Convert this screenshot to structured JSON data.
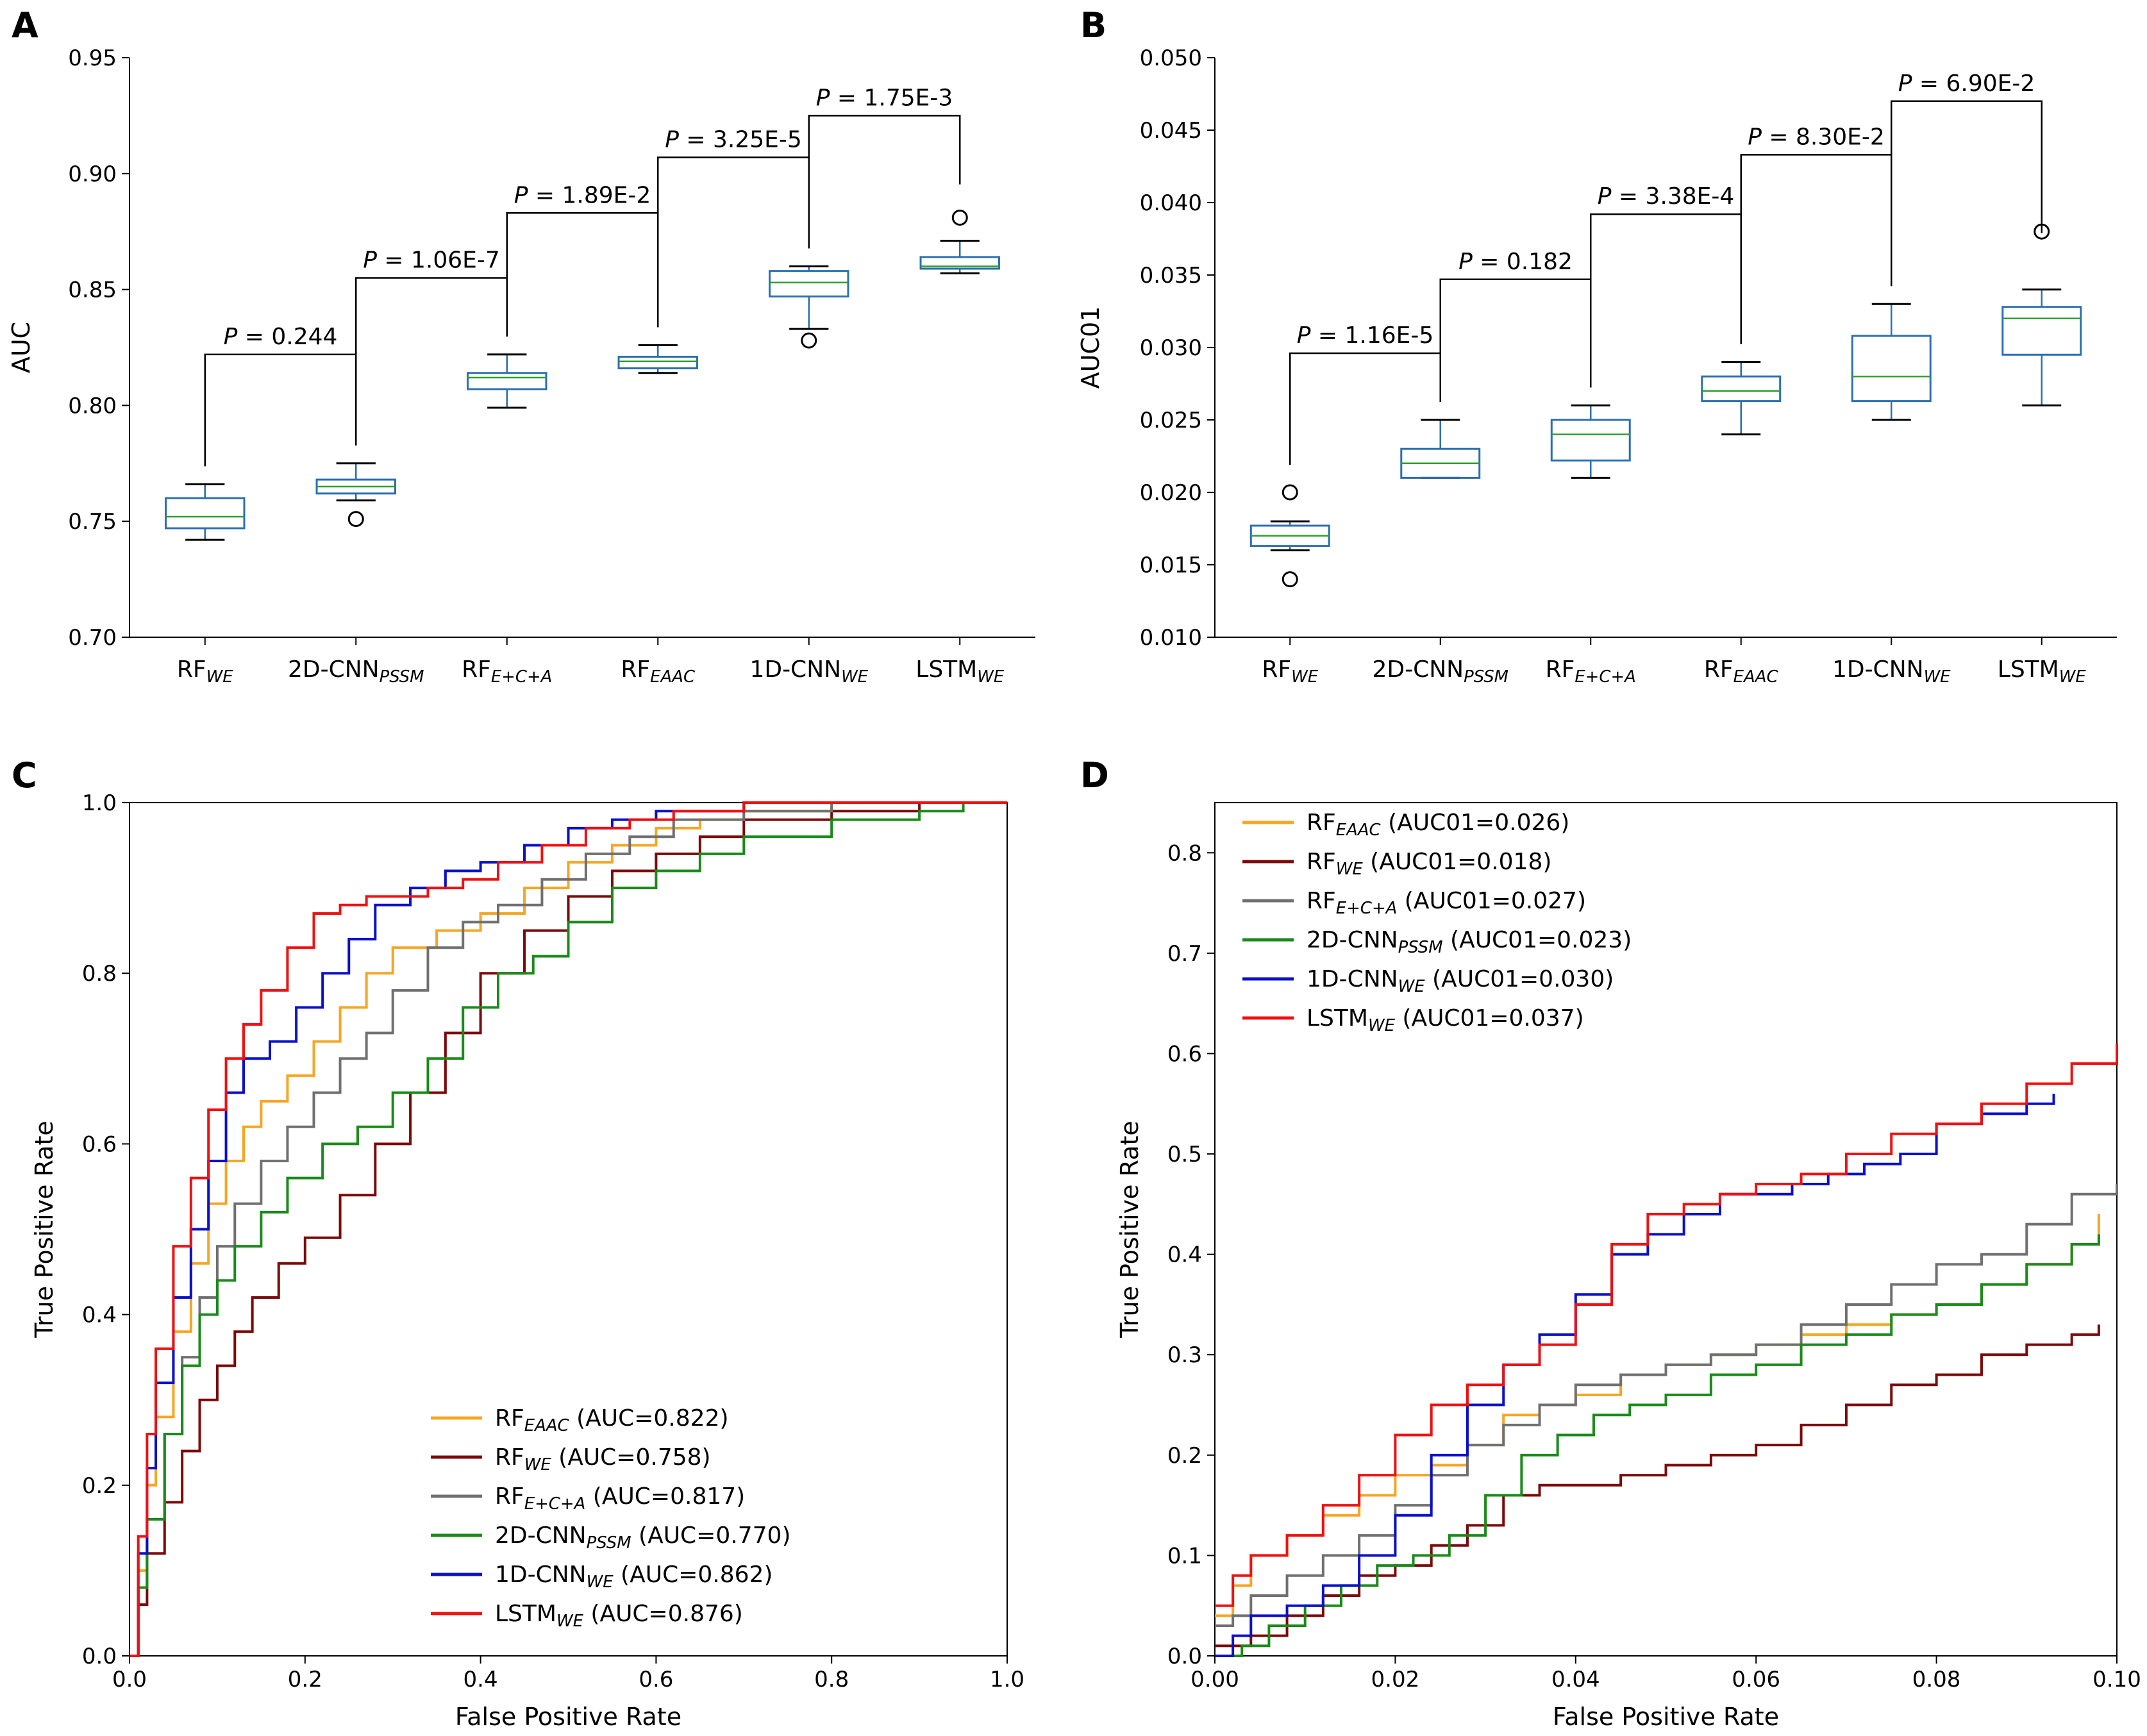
{
  "figure": {
    "panels": [
      "A",
      "B",
      "C",
      "D"
    ]
  },
  "chart_data": [
    {
      "panel": "A",
      "type": "box",
      "ylabel": "AUC",
      "xlabel": "",
      "ylim": [
        0.7,
        0.95
      ],
      "yticks": [
        "0.70",
        "0.75",
        "0.80",
        "0.85",
        "0.90",
        "0.95"
      ],
      "categories": [
        {
          "name": "RF",
          "sub": "WE"
        },
        {
          "name": "2D-CNN",
          "sub": "PSSM"
        },
        {
          "name": "RF",
          "sub": "E+C+A"
        },
        {
          "name": "RF",
          "sub": "EAAC"
        },
        {
          "name": "1D-CNN",
          "sub": "WE"
        },
        {
          "name": "LSTM",
          "sub": "WE"
        }
      ],
      "boxes": [
        {
          "min": 0.742,
          "q1": 0.747,
          "median": 0.752,
          "q3": 0.76,
          "max": 0.766,
          "outliers": []
        },
        {
          "min": 0.759,
          "q1": 0.762,
          "median": 0.765,
          "q3": 0.768,
          "max": 0.775,
          "outliers": [
            0.751
          ]
        },
        {
          "min": 0.799,
          "q1": 0.807,
          "median": 0.812,
          "q3": 0.814,
          "max": 0.822,
          "outliers": []
        },
        {
          "min": 0.814,
          "q1": 0.816,
          "median": 0.819,
          "q3": 0.821,
          "max": 0.826,
          "outliers": []
        },
        {
          "min": 0.833,
          "q1": 0.847,
          "median": 0.853,
          "q3": 0.858,
          "max": 0.86,
          "outliers": [
            0.828
          ]
        },
        {
          "min": 0.857,
          "q1": 0.859,
          "median": 0.86,
          "q3": 0.864,
          "max": 0.871,
          "outliers": [
            0.881
          ]
        }
      ],
      "comparisons": [
        {
          "from": 0,
          "to": 1,
          "label": "P = 0.244",
          "y": 0.822
        },
        {
          "from": 1,
          "to": 2,
          "label": "P = 1.06E-7",
          "y": 0.855
        },
        {
          "from": 2,
          "to": 3,
          "label": "P = 1.89E-2",
          "y": 0.883
        },
        {
          "from": 3,
          "to": 4,
          "label": "P = 3.25E-5",
          "y": 0.907
        },
        {
          "from": 4,
          "to": 5,
          "label": "P = 1.75E-3",
          "y": 0.925
        }
      ]
    },
    {
      "panel": "B",
      "type": "box",
      "ylabel": "AUC01",
      "xlabel": "",
      "ylim": [
        0.01,
        0.05
      ],
      "yticks": [
        "0.010",
        "0.015",
        "0.020",
        "0.025",
        "0.030",
        "0.035",
        "0.040",
        "0.045",
        "0.050"
      ],
      "categories": [
        {
          "name": "RF",
          "sub": "WE"
        },
        {
          "name": "2D-CNN",
          "sub": "PSSM"
        },
        {
          "name": "RF",
          "sub": "E+C+A"
        },
        {
          "name": "RF",
          "sub": "EAAC"
        },
        {
          "name": "1D-CNN",
          "sub": "WE"
        },
        {
          "name": "LSTM",
          "sub": "WE"
        }
      ],
      "boxes": [
        {
          "min": 0.016,
          "q1": 0.0163,
          "median": 0.017,
          "q3": 0.0177,
          "max": 0.018,
          "outliers": [
            0.02,
            0.014
          ]
        },
        {
          "min": 0.021,
          "q1": 0.021,
          "median": 0.022,
          "q3": 0.023,
          "max": 0.025,
          "outliers": []
        },
        {
          "min": 0.021,
          "q1": 0.0222,
          "median": 0.024,
          "q3": 0.025,
          "max": 0.026,
          "outliers": []
        },
        {
          "min": 0.024,
          "q1": 0.0263,
          "median": 0.027,
          "q3": 0.028,
          "max": 0.029,
          "outliers": []
        },
        {
          "min": 0.025,
          "q1": 0.0263,
          "median": 0.028,
          "q3": 0.0308,
          "max": 0.033,
          "outliers": []
        },
        {
          "min": 0.026,
          "q1": 0.0295,
          "median": 0.032,
          "q3": 0.0328,
          "max": 0.034,
          "outliers": [
            0.038
          ]
        }
      ],
      "comparisons": [
        {
          "from": 0,
          "to": 1,
          "label": "P = 1.16E-5",
          "y": 0.0296
        },
        {
          "from": 1,
          "to": 2,
          "label": "P = 0.182",
          "y": 0.0347
        },
        {
          "from": 2,
          "to": 3,
          "label": "P = 3.38E-4",
          "y": 0.0392
        },
        {
          "from": 3,
          "to": 4,
          "label": "P = 8.30E-2",
          "y": 0.0433
        },
        {
          "from": 4,
          "to": 5,
          "label": "P = 6.90E-2",
          "y": 0.047
        }
      ]
    },
    {
      "panel": "C",
      "type": "line",
      "xlabel": "False Positive Rate",
      "ylabel": "True Positive Rate",
      "xlim": [
        0.0,
        1.0
      ],
      "ylim": [
        0.0,
        1.0
      ],
      "xticks": [
        "0.0",
        "0.2",
        "0.4",
        "0.6",
        "0.8",
        "1.0"
      ],
      "yticks": [
        "0.0",
        "0.2",
        "0.4",
        "0.6",
        "0.8",
        "1.0"
      ],
      "legend_position": "lower-right",
      "series": [
        {
          "name": "RF",
          "sub": "EAAC",
          "suffix": " (AUC=0.822)",
          "color": "#f5a623",
          "x": [
            0,
            0.01,
            0.02,
            0.03,
            0.05,
            0.07,
            0.09,
            0.11,
            0.13,
            0.15,
            0.18,
            0.21,
            0.24,
            0.27,
            0.3,
            0.35,
            0.4,
            0.45,
            0.5,
            0.55,
            0.6,
            0.65,
            0.7,
            0.8,
            1.0
          ],
          "y": [
            0,
            0.1,
            0.2,
            0.28,
            0.38,
            0.46,
            0.53,
            0.58,
            0.62,
            0.65,
            0.68,
            0.72,
            0.76,
            0.8,
            0.83,
            0.85,
            0.87,
            0.9,
            0.93,
            0.95,
            0.97,
            0.98,
            0.99,
            1.0,
            1.0
          ]
        },
        {
          "name": "RF",
          "sub": "WE",
          "suffix": " (AUC=0.758)",
          "color": "#7a0a0a",
          "x": [
            0,
            0.01,
            0.02,
            0.04,
            0.06,
            0.08,
            0.1,
            0.12,
            0.14,
            0.17,
            0.2,
            0.24,
            0.28,
            0.32,
            0.36,
            0.4,
            0.45,
            0.5,
            0.55,
            0.6,
            0.65,
            0.7,
            0.8,
            0.9,
            1.0
          ],
          "y": [
            0,
            0.06,
            0.12,
            0.18,
            0.24,
            0.3,
            0.34,
            0.38,
            0.42,
            0.46,
            0.49,
            0.54,
            0.6,
            0.66,
            0.73,
            0.8,
            0.85,
            0.89,
            0.92,
            0.94,
            0.96,
            0.98,
            0.99,
            1.0,
            1.0
          ]
        },
        {
          "name": "RF",
          "sub": "E+C+A",
          "suffix": " (AUC=0.817)",
          "color": "#707070",
          "x": [
            0,
            0.01,
            0.02,
            0.04,
            0.06,
            0.08,
            0.1,
            0.12,
            0.15,
            0.18,
            0.21,
            0.24,
            0.27,
            0.3,
            0.34,
            0.38,
            0.42,
            0.47,
            0.52,
            0.57,
            0.62,
            0.7,
            0.8,
            1.0
          ],
          "y": [
            0,
            0.08,
            0.16,
            0.26,
            0.35,
            0.42,
            0.48,
            0.53,
            0.58,
            0.62,
            0.66,
            0.7,
            0.73,
            0.78,
            0.83,
            0.86,
            0.88,
            0.91,
            0.94,
            0.96,
            0.98,
            0.99,
            1.0,
            1.0
          ]
        },
        {
          "name": "2D-CNN",
          "sub": "PSSM",
          "suffix": " (AUC=0.770)",
          "color": "#1a8a1a",
          "x": [
            0,
            0.01,
            0.02,
            0.04,
            0.06,
            0.08,
            0.1,
            0.12,
            0.15,
            0.18,
            0.22,
            0.26,
            0.3,
            0.34,
            0.38,
            0.42,
            0.46,
            0.5,
            0.55,
            0.6,
            0.65,
            0.7,
            0.8,
            0.9,
            0.95,
            1.0
          ],
          "y": [
            0,
            0.08,
            0.16,
            0.26,
            0.34,
            0.4,
            0.44,
            0.48,
            0.52,
            0.56,
            0.6,
            0.62,
            0.66,
            0.7,
            0.76,
            0.8,
            0.82,
            0.86,
            0.9,
            0.92,
            0.94,
            0.96,
            0.98,
            0.99,
            1.0,
            1.0
          ]
        },
        {
          "name": "1D-CNN",
          "sub": "WE",
          "suffix": " (AUC=0.862)",
          "color": "#0a10c8",
          "x": [
            0,
            0.01,
            0.02,
            0.03,
            0.05,
            0.07,
            0.09,
            0.11,
            0.13,
            0.16,
            0.19,
            0.22,
            0.25,
            0.28,
            0.32,
            0.36,
            0.4,
            0.45,
            0.5,
            0.55,
            0.6,
            0.7,
            1.0
          ],
          "y": [
            0,
            0.12,
            0.22,
            0.32,
            0.42,
            0.5,
            0.58,
            0.66,
            0.7,
            0.72,
            0.76,
            0.8,
            0.84,
            0.88,
            0.9,
            0.92,
            0.93,
            0.95,
            0.97,
            0.98,
            0.99,
            1.0,
            1.0
          ]
        },
        {
          "name": "LSTM",
          "sub": "WE",
          "suffix": " (AUC=0.876)",
          "color": "#ee1111",
          "x": [
            0,
            0.01,
            0.02,
            0.03,
            0.05,
            0.07,
            0.09,
            0.11,
            0.13,
            0.15,
            0.18,
            0.21,
            0.24,
            0.27,
            0.3,
            0.34,
            0.38,
            0.42,
            0.47,
            0.52,
            0.57,
            0.62,
            0.7,
            1.0
          ],
          "y": [
            0,
            0.14,
            0.26,
            0.36,
            0.48,
            0.56,
            0.64,
            0.7,
            0.74,
            0.78,
            0.83,
            0.87,
            0.88,
            0.89,
            0.89,
            0.9,
            0.91,
            0.93,
            0.95,
            0.97,
            0.98,
            0.99,
            1.0,
            1.0
          ]
        }
      ]
    },
    {
      "panel": "D",
      "type": "line",
      "xlabel": "False Positive Rate",
      "ylabel": "True Positive Rate",
      "xlim": [
        0.0,
        0.1
      ],
      "ylim": [
        0.0,
        0.85
      ],
      "xticks": [
        "0.00",
        "0.02",
        "0.04",
        "0.06",
        "0.08",
        "0.10"
      ],
      "yticks": [
        "0.0",
        "0.1",
        "0.2",
        "0.3",
        "0.4",
        "0.5",
        "0.6",
        "0.7",
        "0.8"
      ],
      "legend_position": "upper-left",
      "series": [
        {
          "name": "RF",
          "sub": "EAAC",
          "suffix": " (AUC01=0.026)",
          "color": "#f5a623",
          "x": [
            0,
            0.002,
            0.004,
            0.008,
            0.012,
            0.016,
            0.02,
            0.024,
            0.028,
            0.032,
            0.036,
            0.04,
            0.045,
            0.05,
            0.055,
            0.06,
            0.065,
            0.07,
            0.075,
            0.08,
            0.085,
            0.09,
            0.095,
            0.098
          ],
          "y": [
            0.04,
            0.07,
            0.1,
            0.12,
            0.14,
            0.16,
            0.18,
            0.19,
            0.21,
            0.24,
            0.25,
            0.26,
            0.28,
            0.29,
            0.3,
            0.31,
            0.32,
            0.33,
            0.34,
            0.35,
            0.37,
            0.39,
            0.41,
            0.44
          ]
        },
        {
          "name": "RF",
          "sub": "WE",
          "suffix": " (AUC01=0.018)",
          "color": "#7a0a0a",
          "x": [
            0,
            0.004,
            0.008,
            0.012,
            0.016,
            0.02,
            0.024,
            0.028,
            0.032,
            0.036,
            0.04,
            0.045,
            0.05,
            0.055,
            0.06,
            0.065,
            0.07,
            0.075,
            0.08,
            0.085,
            0.09,
            0.095,
            0.098
          ],
          "y": [
            0.01,
            0.02,
            0.04,
            0.06,
            0.08,
            0.09,
            0.11,
            0.13,
            0.16,
            0.17,
            0.17,
            0.18,
            0.19,
            0.2,
            0.21,
            0.23,
            0.25,
            0.27,
            0.28,
            0.3,
            0.31,
            0.32,
            0.33
          ]
        },
        {
          "name": "RF",
          "sub": "E+C+A",
          "suffix": " (AUC01=0.027)",
          "color": "#707070",
          "x": [
            0,
            0.002,
            0.004,
            0.008,
            0.012,
            0.016,
            0.02,
            0.024,
            0.028,
            0.032,
            0.036,
            0.04,
            0.045,
            0.05,
            0.055,
            0.06,
            0.065,
            0.07,
            0.075,
            0.08,
            0.085,
            0.09,
            0.095,
            0.1
          ],
          "y": [
            0.03,
            0.04,
            0.06,
            0.08,
            0.1,
            0.12,
            0.15,
            0.18,
            0.21,
            0.23,
            0.25,
            0.27,
            0.28,
            0.29,
            0.3,
            0.31,
            0.33,
            0.35,
            0.37,
            0.39,
            0.4,
            0.43,
            0.46,
            0.47
          ]
        },
        {
          "name": "2D-CNN",
          "sub": "PSSM",
          "suffix": " (AUC01=0.023)",
          "color": "#1a8a1a",
          "x": [
            0,
            0.003,
            0.006,
            0.01,
            0.014,
            0.018,
            0.022,
            0.026,
            0.03,
            0.034,
            0.038,
            0.042,
            0.046,
            0.05,
            0.055,
            0.06,
            0.065,
            0.07,
            0.075,
            0.08,
            0.085,
            0.09,
            0.095,
            0.098
          ],
          "y": [
            0.0,
            0.01,
            0.03,
            0.05,
            0.07,
            0.09,
            0.1,
            0.12,
            0.16,
            0.2,
            0.22,
            0.24,
            0.25,
            0.26,
            0.28,
            0.29,
            0.31,
            0.32,
            0.34,
            0.35,
            0.37,
            0.39,
            0.41,
            0.42
          ]
        },
        {
          "name": "1D-CNN",
          "sub": "WE",
          "suffix": " (AUC01=0.030)",
          "color": "#0a10c8",
          "x": [
            0,
            0.002,
            0.004,
            0.008,
            0.012,
            0.016,
            0.02,
            0.024,
            0.028,
            0.032,
            0.036,
            0.04,
            0.044,
            0.048,
            0.052,
            0.056,
            0.06,
            0.064,
            0.068,
            0.072,
            0.076,
            0.08,
            0.085,
            0.09,
            0.093
          ],
          "y": [
            0.0,
            0.02,
            0.04,
            0.05,
            0.07,
            0.1,
            0.14,
            0.2,
            0.25,
            0.29,
            0.32,
            0.36,
            0.4,
            0.42,
            0.44,
            0.46,
            0.46,
            0.47,
            0.48,
            0.49,
            0.5,
            0.53,
            0.54,
            0.55,
            0.56
          ]
        },
        {
          "name": "LSTM",
          "sub": "WE",
          "suffix": " (AUC01=0.037)",
          "color": "#ee1111",
          "x": [
            0,
            0.002,
            0.004,
            0.008,
            0.012,
            0.016,
            0.02,
            0.024,
            0.028,
            0.032,
            0.036,
            0.04,
            0.044,
            0.048,
            0.052,
            0.056,
            0.06,
            0.065,
            0.07,
            0.075,
            0.08,
            0.085,
            0.09,
            0.095,
            0.1
          ],
          "y": [
            0.05,
            0.08,
            0.1,
            0.12,
            0.15,
            0.18,
            0.22,
            0.25,
            0.27,
            0.29,
            0.31,
            0.35,
            0.41,
            0.44,
            0.45,
            0.46,
            0.47,
            0.48,
            0.5,
            0.52,
            0.53,
            0.55,
            0.57,
            0.59,
            0.61
          ]
        }
      ]
    }
  ]
}
